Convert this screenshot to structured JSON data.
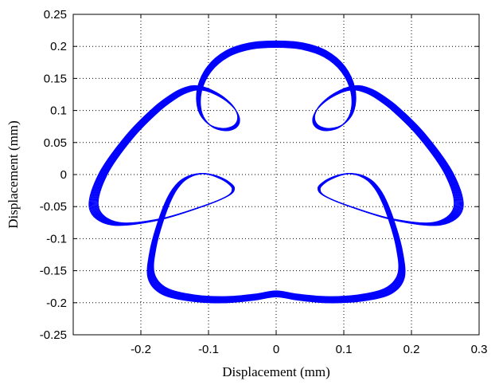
{
  "chart_data": {
    "type": "line",
    "title": "",
    "xlabel": "Displacement (mm)",
    "ylabel": "Displacement (mm)",
    "xlim": [
      -0.3,
      0.3
    ],
    "ylim": [
      -0.25,
      0.25
    ],
    "x_ticks": [
      -0.2,
      -0.1,
      0,
      0.1,
      0.2,
      0.3
    ],
    "x_tick_labels": [
      "-0.2",
      "-0.1",
      "0",
      "0.1",
      "0.2",
      "0.3"
    ],
    "y_ticks": [
      0.25,
      0.2,
      0.15,
      0.1,
      0.05,
      0,
      -0.05,
      -0.1,
      -0.15,
      -0.2,
      -0.25
    ],
    "y_tick_labels": [
      "0.25",
      "0.2",
      "0.15",
      "0.1",
      "0.05",
      "0",
      "-0.05",
      "-0.1",
      "-0.15",
      "-0.2",
      "-0.25"
    ],
    "grid": true,
    "series": [
      {
        "color": "#0000ff",
        "description_of_shape": "orbit with 6 inner loops",
        "x": [
          0.0,
          0.0382,
          0.0726,
          0.0994,
          0.1138,
          0.1128,
          0.0981,
          0.0774,
          0.0611,
          0.0555,
          0.0613,
          0.0751,
          0.0917,
          0.1067,
          0.1185,
          0.13,
          0.1476,
          0.1771,
          0.2178,
          0.2569,
          0.2698,
          0.2389,
          0.175,
          0.1103,
          0.0718,
          0.0635,
          0.0726,
          0.0866,
          0.1004,
          0.1137,
          0.1277,
          0.142,
          0.156,
          0.17,
          0.1825,
          0.1852,
          0.1658,
          0.1242,
          0.0752,
          0.032,
          0.0,
          -0.032,
          -0.0752,
          -0.1242,
          -0.1658,
          -0.1852,
          -0.1825,
          -0.17,
          -0.156,
          -0.142,
          -0.1277,
          -0.1137,
          -0.1004,
          -0.0866,
          -0.0726,
          -0.0635,
          -0.0718,
          -0.1103,
          -0.175,
          -0.2389,
          -0.2698,
          -0.2569,
          -0.2178,
          -0.1771,
          -0.1476,
          -0.13,
          -0.1185,
          -0.1067,
          -0.0917,
          -0.0751,
          -0.0613,
          -0.0555,
          -0.0611,
          -0.0774,
          -0.0981,
          -0.1128,
          -0.1138,
          -0.0994,
          -0.0726,
          -0.0382,
          0.0
        ],
        "y": [
          0.2039,
          0.201,
          0.1888,
          0.1647,
          0.1315,
          0.0989,
          0.0774,
          0.0704,
          0.0751,
          0.0874,
          0.103,
          0.1175,
          0.1282,
          0.1342,
          0.1357,
          0.1335,
          0.1251,
          0.1022,
          0.0586,
          -0.0002,
          -0.0524,
          -0.0768,
          -0.0707,
          -0.0502,
          -0.0334,
          -0.0217,
          -0.0112,
          -0.0036,
          0.0006,
          0.0012,
          -0.0026,
          -0.0125,
          -0.033,
          -0.0693,
          -0.1169,
          -0.158,
          -0.1822,
          -0.1931,
          -0.1957,
          -0.1917,
          -0.1866,
          -0.1917,
          -0.1957,
          -0.1931,
          -0.1822,
          -0.158,
          -0.1169,
          -0.0693,
          -0.033,
          -0.0125,
          -0.0026,
          0.0012,
          0.0006,
          -0.0036,
          -0.0112,
          -0.0217,
          -0.0334,
          -0.0502,
          -0.0707,
          -0.0768,
          -0.0524,
          -0.0002,
          0.0586,
          0.1022,
          0.1251,
          0.1335,
          0.1357,
          0.1342,
          0.1282,
          0.1175,
          0.103,
          0.0874,
          0.0751,
          0.0704,
          0.0774,
          0.0989,
          0.1315,
          0.1647,
          0.1888,
          0.201,
          0.2039
        ]
      }
    ]
  }
}
